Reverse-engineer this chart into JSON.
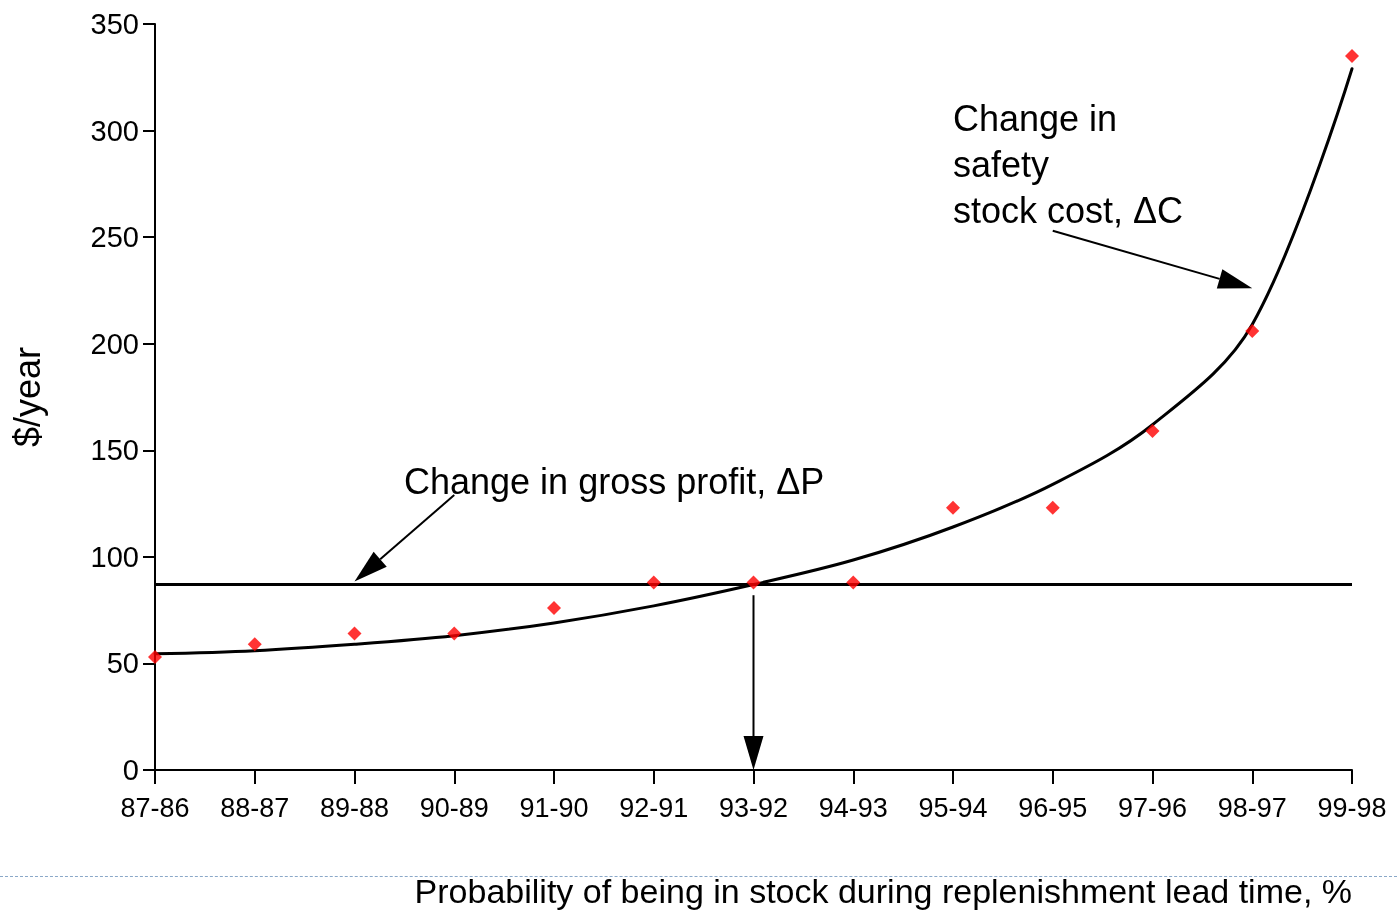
{
  "chart_data": {
    "type": "scatter",
    "xlabel": "Probability of being in stock during replenishment lead time, %",
    "ylabel": "$/year",
    "categories": [
      "87-86",
      "88-87",
      "89-88",
      "90-89",
      "91-90",
      "92-91",
      "93-92",
      "94-93",
      "95-94",
      "96-95",
      "97-96",
      "98-97",
      "99-98"
    ],
    "series": [
      {
        "color": "#ff0000",
        "marker": "diamond",
        "values": [
          53,
          59,
          64,
          64,
          76,
          88,
          88,
          88,
          123,
          123,
          159,
          206,
          335
        ]
      },
      {
        "type": "line",
        "color": "#000000",
        "marker": "none",
        "values": [
          54.5,
          56,
          59,
          63,
          69,
          77,
          87,
          98.5,
          114,
          134,
          162,
          209,
          329
        ]
      }
    ],
    "ylim": [
      0,
      350
    ],
    "yticks": [
      0,
      50,
      100,
      150,
      200,
      250,
      300,
      350
    ],
    "ref_lines": [
      {
        "axis": "y",
        "value": 87,
        "color": "#000000"
      }
    ],
    "annotations": [
      "Change in gross profit, ΔP",
      "Change in\nsafety\nstock cost, ΔC"
    ],
    "grid": false
  }
}
